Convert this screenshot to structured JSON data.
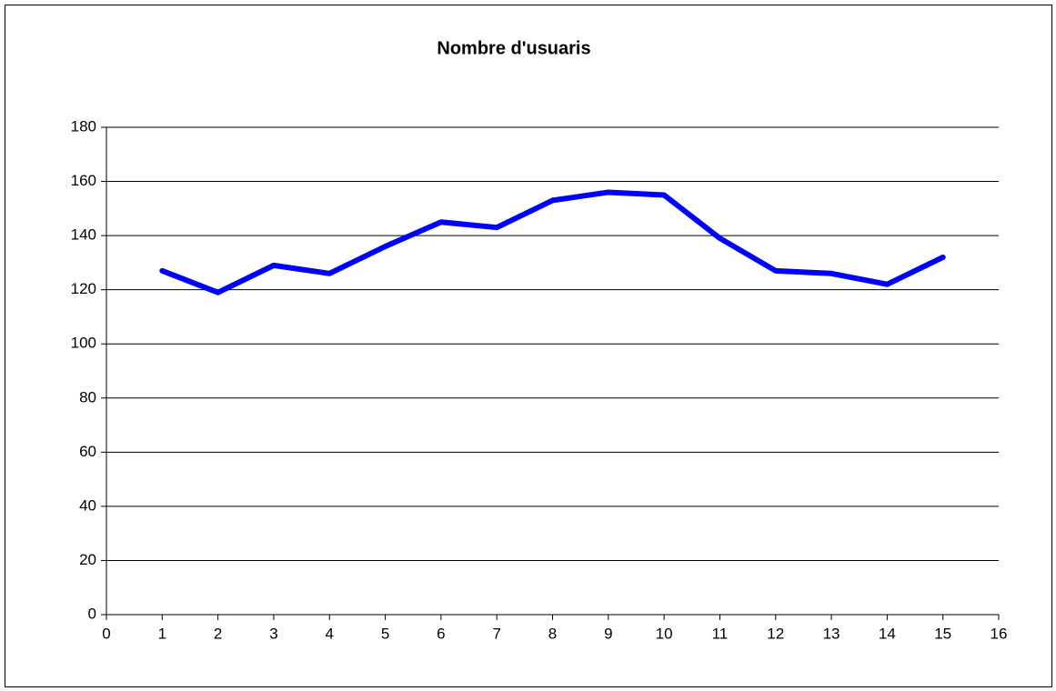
{
  "chart_data": {
    "type": "line",
    "title": "Nombre d'usuaris",
    "x": [
      1,
      2,
      3,
      4,
      5,
      6,
      7,
      8,
      9,
      10,
      11,
      12,
      13,
      14,
      15
    ],
    "values": [
      127,
      119,
      129,
      126,
      136,
      145,
      143,
      153,
      156,
      155,
      139,
      127,
      126,
      122,
      132
    ],
    "color": "#0000ff",
    "xlim": [
      0,
      16
    ],
    "xticks": [
      0,
      1,
      2,
      3,
      4,
      5,
      6,
      7,
      8,
      9,
      10,
      11,
      12,
      13,
      14,
      15,
      16
    ],
    "ylim": [
      0,
      180
    ],
    "yticks": [
      0,
      20,
      40,
      60,
      80,
      100,
      120,
      140,
      160,
      180
    ],
    "grid": true
  }
}
